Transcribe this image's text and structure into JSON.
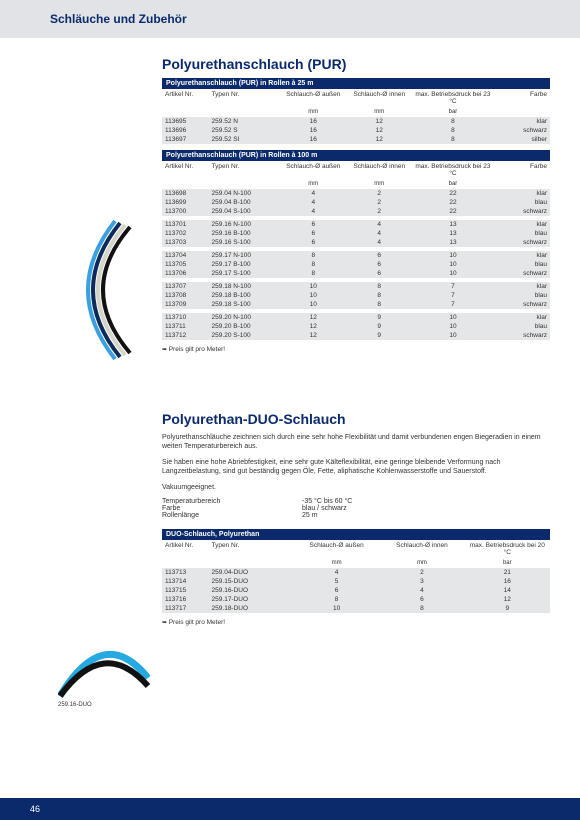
{
  "page": {
    "number": "46",
    "header": "Schläuche und Zubehör"
  },
  "section1": {
    "title": "Polyurethanschlauch (PUR)",
    "table1Header": "Polyurethanschlauch (PUR) in Rollen à 25 m",
    "table2Header": "Polyurethanschlauch (PUR) in Rollen à 100 m",
    "note": "Preis gilt pro Meter!"
  },
  "columns": {
    "artikel": "Artikel Nr.",
    "typen": "Typen Nr.",
    "aussen": "Schlauch-Ø außen",
    "innen": "Schlauch-Ø innen",
    "druck23": "max. Betriebsdruck bei 23 °C",
    "druck20": "max. Betriebsdruck bei 20 °C",
    "mm": "mm",
    "bar": "bar",
    "farbe": "Farbe"
  },
  "table1Rows": [
    {
      "art": "113695",
      "typ": "259.52 N",
      "a": "16",
      "i": "12",
      "d": "8",
      "f": "klar"
    },
    {
      "art": "113696",
      "typ": "259.52 S",
      "a": "16",
      "i": "12",
      "d": "8",
      "f": "schwarz"
    },
    {
      "art": "113697",
      "typ": "259.52 SI",
      "a": "16",
      "i": "12",
      "d": "8",
      "f": "silber"
    }
  ],
  "table2Groups": [
    [
      {
        "art": "113698",
        "typ": "259.04 N-100",
        "a": "4",
        "i": "2",
        "d": "22",
        "f": "klar"
      },
      {
        "art": "113699",
        "typ": "259.04 B-100",
        "a": "4",
        "i": "2",
        "d": "22",
        "f": "blau"
      },
      {
        "art": "113700",
        "typ": "259.04 S-100",
        "a": "4",
        "i": "2",
        "d": "22",
        "f": "schwarz"
      }
    ],
    [
      {
        "art": "113701",
        "typ": "259.16 N-100",
        "a": "6",
        "i": "4",
        "d": "13",
        "f": "klar"
      },
      {
        "art": "113702",
        "typ": "259.16 B-100",
        "a": "6",
        "i": "4",
        "d": "13",
        "f": "blau"
      },
      {
        "art": "113703",
        "typ": "259.16 S-100",
        "a": "6",
        "i": "4",
        "d": "13",
        "f": "schwarz"
      }
    ],
    [
      {
        "art": "113704",
        "typ": "259.17 N-100",
        "a": "8",
        "i": "6",
        "d": "10",
        "f": "klar"
      },
      {
        "art": "113705",
        "typ": "259.17 B-100",
        "a": "8",
        "i": "6",
        "d": "10",
        "f": "blau"
      },
      {
        "art": "113706",
        "typ": "259.17 S-100",
        "a": "8",
        "i": "6",
        "d": "10",
        "f": "schwarz"
      }
    ],
    [
      {
        "art": "113707",
        "typ": "259.18 N-100",
        "a": "10",
        "i": "8",
        "d": "7",
        "f": "klar"
      },
      {
        "art": "113708",
        "typ": "259.18 B-100",
        "a": "10",
        "i": "8",
        "d": "7",
        "f": "blau"
      },
      {
        "art": "113709",
        "typ": "259.18 S-100",
        "a": "10",
        "i": "8",
        "d": "7",
        "f": "schwarz"
      }
    ],
    [
      {
        "art": "113710",
        "typ": "259.20 N-100",
        "a": "12",
        "i": "9",
        "d": "10",
        "f": "klar"
      },
      {
        "art": "113711",
        "typ": "259.20 B-100",
        "a": "12",
        "i": "9",
        "d": "10",
        "f": "blau"
      },
      {
        "art": "113712",
        "typ": "259.20 S-100",
        "a": "12",
        "i": "9",
        "d": "10",
        "f": "schwarz"
      }
    ]
  ],
  "section2": {
    "title": "Polyurethan-DUO-Schlauch",
    "para1": "Polyurethanschläuche zeichnen sich durch eine sehr hohe Flexibilität und damit verbundenen engen Biegeradien in einem weiten Temperaturbereich aus.",
    "para2": "Sie haben eine hohe Abriebfestigkeit, eine sehr gute Kälteflexibilität, eine geringe bleibende Verformung nach Langzeitbelastung, sind gut beständig gegen Öle, Fette, aliphatische Kohlenwasserstoffe und Sauerstoff.",
    "para3": "Vakuumgeeignet.",
    "specs": {
      "tempLabel": "Temperaturbereich",
      "tempVal": "-35 °C bis 60 °C",
      "farbeLabel": "Farbe",
      "farbeVal": "blau / schwarz",
      "rollLabel": "Rollenlänge",
      "rollVal": "25 m"
    },
    "tableHeader": "DUO-Schlauch, Polyurethan",
    "note": "Preis gilt pro Meter!",
    "imgCaption": "259.16-DUO"
  },
  "table3Rows": [
    {
      "art": "113713",
      "typ": "259.04-DUO",
      "a": "4",
      "i": "2",
      "d": "21"
    },
    {
      "art": "113714",
      "typ": "259.15-DUO",
      "a": "5",
      "i": "3",
      "d": "16"
    },
    {
      "art": "113715",
      "typ": "259.16-DUO",
      "a": "6",
      "i": "4",
      "d": "14"
    },
    {
      "art": "113716",
      "typ": "259.17-DUO",
      "a": "8",
      "i": "6",
      "d": "12"
    },
    {
      "art": "113717",
      "typ": "259.18-DUO",
      "a": "10",
      "i": "8",
      "d": "9"
    }
  ],
  "style": {
    "brandBlue": "#0a2a6b",
    "rowShade": "#e5e6e8",
    "headerBg": "#e1e3e6",
    "tubeColors": [
      "#3aa0e0",
      "#0d2b5a",
      "#d4d4c8",
      "#111111"
    ],
    "duoColors": [
      "#25a9e0",
      "#111111"
    ]
  }
}
